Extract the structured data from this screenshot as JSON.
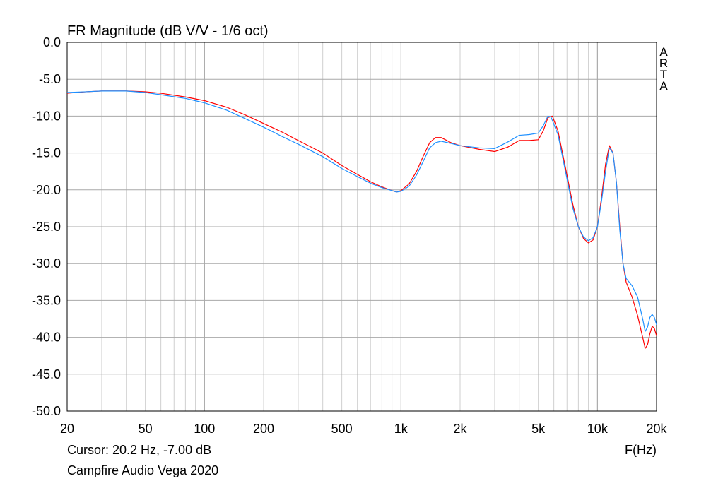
{
  "chart_data": {
    "type": "line",
    "title": "FR Magnitude (dB V/V - 1/6 oct)",
    "xlabel": "F(Hz)",
    "ylabel": "",
    "x_scale": "log",
    "xlim": [
      20,
      20000
    ],
    "ylim": [
      -50,
      0
    ],
    "grid": true,
    "x_ticks": [
      {
        "value": 20,
        "label": "20"
      },
      {
        "value": 50,
        "label": "50"
      },
      {
        "value": 100,
        "label": "100"
      },
      {
        "value": 200,
        "label": "200"
      },
      {
        "value": 500,
        "label": "500"
      },
      {
        "value": 1000,
        "label": "1k"
      },
      {
        "value": 2000,
        "label": "2k"
      },
      {
        "value": 5000,
        "label": "5k"
      },
      {
        "value": 10000,
        "label": "10k"
      },
      {
        "value": 20000,
        "label": "20k"
      }
    ],
    "y_ticks": [
      {
        "value": 0,
        "label": "0.0"
      },
      {
        "value": -5,
        "label": "-5.0"
      },
      {
        "value": -10,
        "label": "-10.0"
      },
      {
        "value": -15,
        "label": "-15.0"
      },
      {
        "value": -20,
        "label": "-20.0"
      },
      {
        "value": -25,
        "label": "-25.0"
      },
      {
        "value": -30,
        "label": "-30.0"
      },
      {
        "value": -35,
        "label": "-35.0"
      },
      {
        "value": -40,
        "label": "-40.0"
      },
      {
        "value": -45,
        "label": "-45.0"
      },
      {
        "value": -50,
        "label": "-50.0"
      }
    ],
    "series": [
      {
        "color": "#ff0000",
        "points": [
          [
            20,
            -6.9
          ],
          [
            25,
            -6.7
          ],
          [
            30,
            -6.6
          ],
          [
            40,
            -6.6
          ],
          [
            50,
            -6.7
          ],
          [
            60,
            -6.9
          ],
          [
            80,
            -7.4
          ],
          [
            100,
            -7.9
          ],
          [
            130,
            -8.8
          ],
          [
            160,
            -9.8
          ],
          [
            200,
            -11.0
          ],
          [
            250,
            -12.2
          ],
          [
            300,
            -13.3
          ],
          [
            400,
            -15.0
          ],
          [
            500,
            -16.7
          ],
          [
            600,
            -17.9
          ],
          [
            700,
            -18.9
          ],
          [
            800,
            -19.6
          ],
          [
            900,
            -20.1
          ],
          [
            950,
            -20.3
          ],
          [
            1000,
            -20.1
          ],
          [
            1100,
            -19.2
          ],
          [
            1200,
            -17.5
          ],
          [
            1300,
            -15.4
          ],
          [
            1400,
            -13.6
          ],
          [
            1500,
            -12.9
          ],
          [
            1600,
            -12.9
          ],
          [
            1800,
            -13.6
          ],
          [
            2000,
            -14.0
          ],
          [
            2500,
            -14.5
          ],
          [
            3000,
            -14.8
          ],
          [
            3500,
            -14.2
          ],
          [
            4000,
            -13.3
          ],
          [
            4500,
            -13.3
          ],
          [
            5000,
            -13.2
          ],
          [
            5300,
            -12.0
          ],
          [
            5600,
            -10.2
          ],
          [
            5900,
            -10.0
          ],
          [
            6300,
            -12.0
          ],
          [
            7000,
            -18.0
          ],
          [
            7500,
            -22.0
          ],
          [
            8000,
            -25.0
          ],
          [
            8500,
            -26.6
          ],
          [
            9000,
            -27.2
          ],
          [
            9500,
            -26.8
          ],
          [
            10000,
            -25.0
          ],
          [
            10500,
            -21.0
          ],
          [
            11000,
            -16.5
          ],
          [
            11500,
            -14.0
          ],
          [
            12000,
            -15.0
          ],
          [
            12500,
            -19.0
          ],
          [
            13000,
            -25.0
          ],
          [
            13500,
            -30.0
          ],
          [
            14000,
            -32.5
          ],
          [
            15000,
            -34.5
          ],
          [
            16000,
            -37.0
          ],
          [
            17000,
            -40.0
          ],
          [
            17500,
            -41.5
          ],
          [
            18000,
            -41.0
          ],
          [
            18500,
            -39.5
          ],
          [
            19000,
            -38.5
          ],
          [
            19500,
            -38.8
          ],
          [
            20000,
            -39.8
          ]
        ]
      },
      {
        "color": "#1e90ff",
        "points": [
          [
            20,
            -6.8
          ],
          [
            25,
            -6.7
          ],
          [
            30,
            -6.6
          ],
          [
            40,
            -6.6
          ],
          [
            50,
            -6.8
          ],
          [
            60,
            -7.1
          ],
          [
            80,
            -7.6
          ],
          [
            100,
            -8.2
          ],
          [
            130,
            -9.2
          ],
          [
            160,
            -10.3
          ],
          [
            200,
            -11.5
          ],
          [
            250,
            -12.8
          ],
          [
            300,
            -13.8
          ],
          [
            400,
            -15.5
          ],
          [
            500,
            -17.1
          ],
          [
            600,
            -18.2
          ],
          [
            700,
            -19.1
          ],
          [
            800,
            -19.7
          ],
          [
            900,
            -20.1
          ],
          [
            950,
            -20.3
          ],
          [
            1000,
            -20.2
          ],
          [
            1100,
            -19.5
          ],
          [
            1200,
            -18.0
          ],
          [
            1300,
            -16.1
          ],
          [
            1400,
            -14.3
          ],
          [
            1500,
            -13.6
          ],
          [
            1600,
            -13.4
          ],
          [
            1800,
            -13.7
          ],
          [
            2000,
            -14.0
          ],
          [
            2500,
            -14.3
          ],
          [
            3000,
            -14.4
          ],
          [
            3500,
            -13.5
          ],
          [
            4000,
            -12.6
          ],
          [
            4500,
            -12.5
          ],
          [
            5000,
            -12.3
          ],
          [
            5300,
            -11.3
          ],
          [
            5600,
            -10.0
          ],
          [
            5800,
            -10.1
          ],
          [
            6300,
            -12.5
          ],
          [
            7000,
            -18.5
          ],
          [
            7500,
            -22.5
          ],
          [
            8000,
            -25.0
          ],
          [
            8500,
            -26.4
          ],
          [
            9000,
            -26.9
          ],
          [
            9500,
            -26.5
          ],
          [
            10000,
            -25.0
          ],
          [
            10500,
            -21.5
          ],
          [
            11000,
            -17.5
          ],
          [
            11500,
            -14.3
          ],
          [
            12000,
            -15.0
          ],
          [
            12500,
            -19.0
          ],
          [
            13000,
            -25.5
          ],
          [
            13500,
            -30.0
          ],
          [
            14000,
            -32.0
          ],
          [
            15000,
            -33.0
          ],
          [
            16000,
            -34.5
          ],
          [
            17000,
            -37.5
          ],
          [
            17500,
            -39.2
          ],
          [
            18000,
            -38.6
          ],
          [
            18500,
            -37.3
          ],
          [
            19000,
            -36.9
          ],
          [
            19500,
            -37.3
          ],
          [
            20000,
            -38.3
          ]
        ]
      }
    ],
    "watermark": [
      "A",
      "R",
      "T",
      "A"
    ]
  },
  "footer": {
    "cursor": "Cursor: 20.2 Hz, -7.00 dB",
    "label": "Campfire Audio Vega 2020"
  }
}
